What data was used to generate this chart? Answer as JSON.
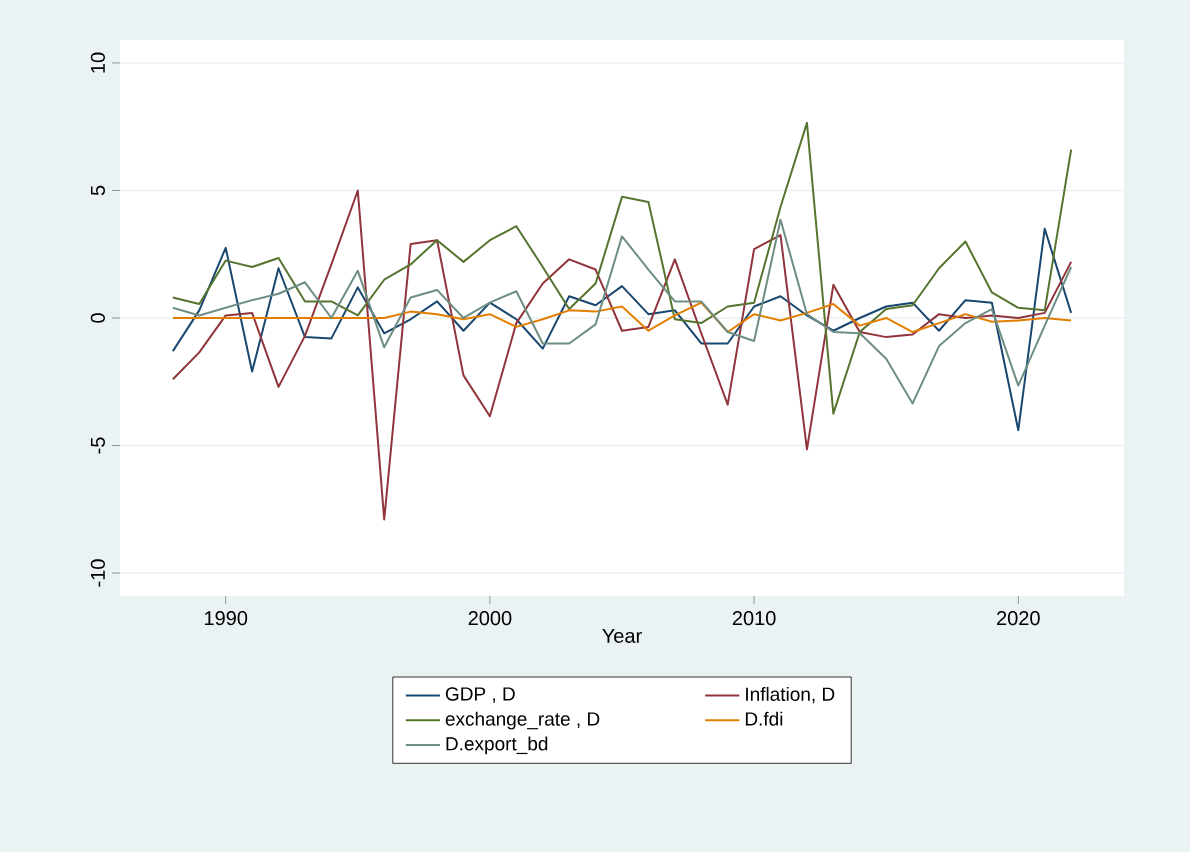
{
  "chart_data": {
    "type": "line",
    "xlabel": "Year",
    "x": [
      1988,
      1989,
      1990,
      1991,
      1992,
      1993,
      1994,
      1995,
      1996,
      1997,
      1998,
      1999,
      2000,
      2001,
      2002,
      2003,
      2004,
      2005,
      2006,
      2007,
      2008,
      2009,
      2010,
      2011,
      2012,
      2013,
      2014,
      2015,
      2016,
      2017,
      2018,
      2019,
      2020,
      2021,
      2022
    ],
    "series": [
      {
        "name": "GDP , D",
        "color": "#1a476f",
        "values": [
          -1.3,
          0.3,
          2.75,
          -2.1,
          1.95,
          -0.75,
          -0.8,
          1.2,
          -0.6,
          -0.05,
          0.65,
          -0.5,
          0.6,
          -0.05,
          -1.2,
          0.85,
          0.5,
          1.25,
          0.15,
          0.3,
          -1.0,
          -1.0,
          0.45,
          0.85,
          0.1,
          -0.5,
          0,
          0.45,
          0.6,
          -0.5,
          0.7,
          0.6,
          -4.4,
          3.5,
          0.2
        ]
      },
      {
        "name": "Inflation, D",
        "color": "#90353b",
        "values": [
          -2.4,
          -1.35,
          0.1,
          0.2,
          -2.7,
          -0.7,
          2.1,
          5.0,
          -7.9,
          2.9,
          3.05,
          -2.25,
          -3.85,
          -0.2,
          1.35,
          2.3,
          1.9,
          -0.5,
          -0.35,
          2.3,
          -0.6,
          -3.4,
          2.7,
          3.25,
          -5.15,
          1.3,
          -0.55,
          -0.75,
          -0.65,
          0.15,
          0,
          0.1,
          0,
          0.2,
          2.2
        ]
      },
      {
        "name": "exchange_rate , D",
        "color": "#55752f",
        "values": [
          0.8,
          0.55,
          2.25,
          2.0,
          2.35,
          0.65,
          0.65,
          0.1,
          1.5,
          2.1,
          3.05,
          2.2,
          3.05,
          3.6,
          2.0,
          0.35,
          1.35,
          4.75,
          4.55,
          -0.05,
          -0.2,
          0.45,
          0.6,
          4.35,
          7.65,
          -3.75,
          -0.55,
          0.35,
          0.5,
          1.95,
          3.0,
          1.0,
          0.4,
          0.3,
          6.6
        ]
      },
      {
        "name": "D.fdi",
        "color": "#e37e00",
        "values": [
          0,
          0,
          0,
          0,
          0,
          0,
          0,
          0,
          0,
          0.25,
          0.15,
          -0.05,
          0.15,
          -0.35,
          -0.05,
          0.3,
          0.25,
          0.45,
          -0.5,
          0.1,
          0.6,
          -0.55,
          0.15,
          -0.1,
          0.2,
          0.55,
          -0.3,
          0,
          -0.55,
          -0.2,
          0.15,
          -0.15,
          -0.1,
          0,
          -0.1
        ]
      },
      {
        "name": "D.export_bd",
        "color": "#6e8e84",
        "values": [
          0.4,
          0.1,
          0.4,
          0.7,
          0.95,
          1.4,
          0,
          1.85,
          -1.15,
          0.8,
          1.1,
          0,
          0.6,
          1.05,
          -1.0,
          -1.0,
          -0.25,
          3.2,
          1.9,
          0.65,
          0.65,
          -0.55,
          -0.9,
          3.85,
          0.15,
          -0.55,
          -0.6,
          -1.6,
          -3.35,
          -1.1,
          -0.2,
          0.35,
          -2.65,
          -0.3,
          2.0
        ]
      }
    ],
    "xlim": [
      1986,
      2024
    ],
    "ylim": [
      -10.9,
      10.9
    ],
    "xticks": [
      1990,
      2000,
      2010,
      2020
    ],
    "yticks": [
      -10,
      -5,
      0,
      5,
      10
    ],
    "grid": "y",
    "legend": "bottom",
    "marker": "none",
    "line_style": "solid"
  }
}
